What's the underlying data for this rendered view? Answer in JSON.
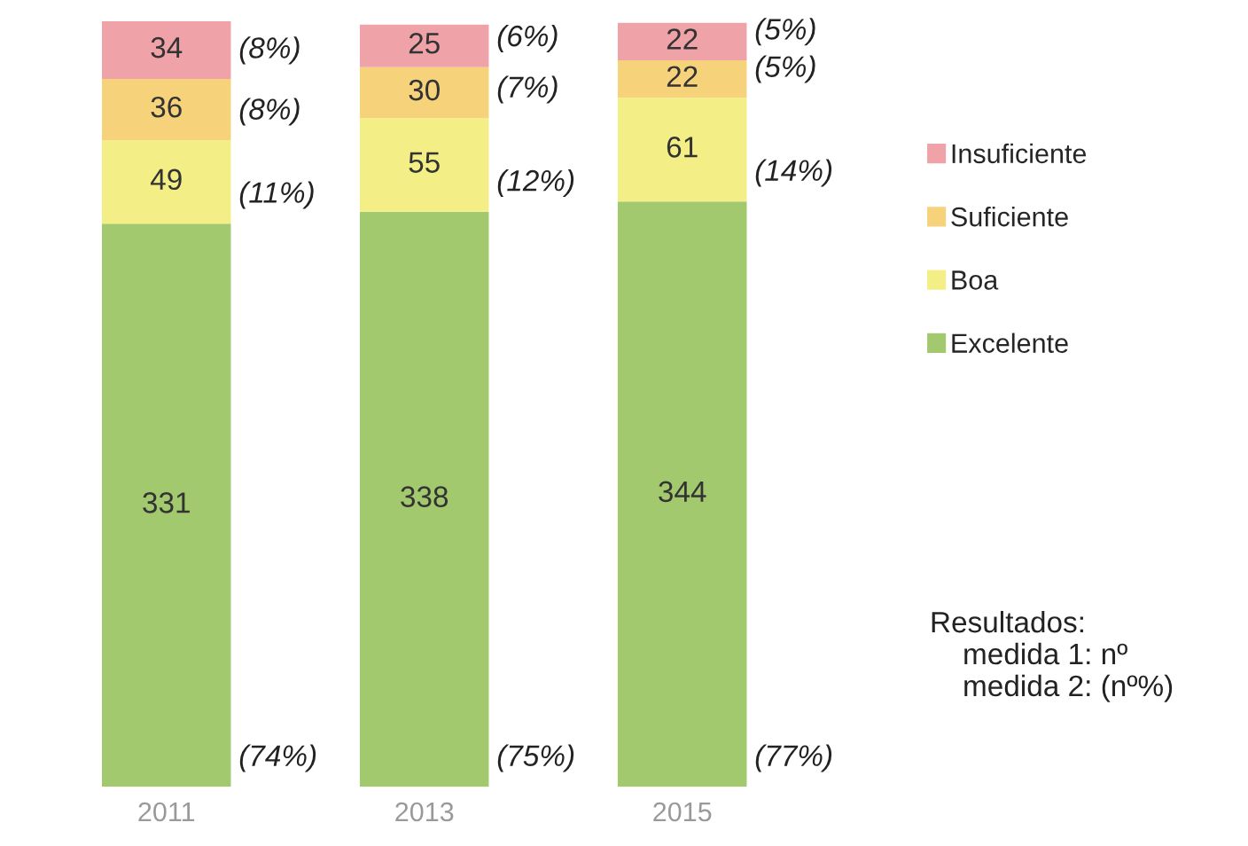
{
  "chart_data": {
    "type": "bar",
    "stacked": true,
    "data_labels": true,
    "legend": "right",
    "grid": false,
    "categories": [
      "2011",
      "2013",
      "2015"
    ],
    "series": [
      {
        "name": "Excelente",
        "color": "#a3c96f",
        "values": [
          331,
          338,
          344
        ]
      },
      {
        "name": "Boa",
        "color": "#f3ef86",
        "values": [
          49,
          55,
          61
        ]
      },
      {
        "name": "Suficiente",
        "color": "#f6d27a",
        "values": [
          36,
          30,
          22
        ]
      },
      {
        "name": "Insuficiente",
        "color": "#efa3a8",
        "values": [
          34,
          25,
          22
        ]
      }
    ],
    "annotations": [
      {
        "text": "(74%)",
        "x": "2011",
        "y": 0
      },
      {
        "text": "(11%)",
        "x": "2011",
        "y": 331
      },
      {
        "text": "(8%)",
        "x": "2011",
        "y": 380
      },
      {
        "text": "(8%)",
        "x": "2011",
        "y": 416
      },
      {
        "text": "(75%)",
        "x": "2013",
        "y": 0
      },
      {
        "text": "(12%)",
        "x": "2013",
        "y": 338
      },
      {
        "text": "(7%)",
        "x": "2013",
        "y": 393
      },
      {
        "text": "(6%)",
        "x": "2013",
        "y": 423
      },
      {
        "text": "(77%)",
        "x": "2015",
        "y": 0
      },
      {
        "text": "(14%)",
        "x": "2015",
        "y": 344
      },
      {
        "text": "(5%)",
        "x": "2015",
        "y": 405
      },
      {
        "text": "(5%)",
        "x": "2015",
        "y": 427
      },
      "Resultados:\n    medida 1: nº\n    medida 2: (nº%)"
    ]
  }
}
